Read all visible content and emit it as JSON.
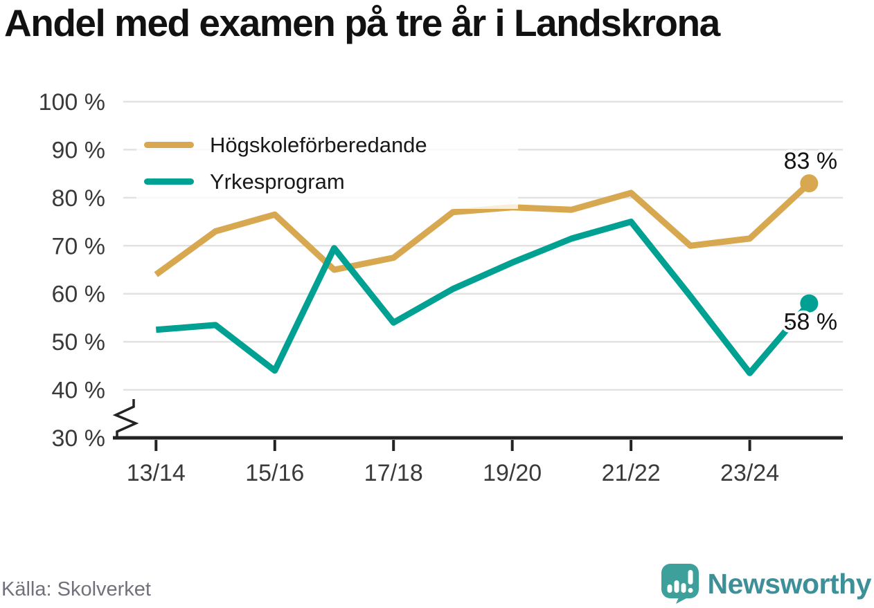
{
  "title": "Andel med examen på tre år i Landskrona",
  "source": "Källa: Skolverket",
  "branding": {
    "name": "Newsworthy",
    "logo_icon": "bar-chart-speech-bubble",
    "logo_color": "#3ea09b",
    "wordmark_color": "#3d9097"
  },
  "colors": {
    "axis": "#232323",
    "gridline": "#e2e2e2",
    "axis_label": "#3a3a3a",
    "annotation": "#141414",
    "hogskoleforberedande": "#d7a84f",
    "yrkesprogram": "#00a092"
  },
  "legend": {
    "items": [
      {
        "label": "Högskoleförberedande",
        "color": "#d7a84f"
      },
      {
        "label": "Yrkesprogram",
        "color": "#00a092"
      }
    ]
  },
  "chart_data": {
    "type": "line",
    "title": "Andel med examen på tre år i Landskrona",
    "x": [
      "13/14",
      "14/15",
      "15/16",
      "16/17",
      "17/18",
      "18/19",
      "19/20",
      "20/21",
      "21/22",
      "22/23",
      "23/24",
      "24/25"
    ],
    "x_tick_labels": [
      "13/14",
      "15/16",
      "17/18",
      "19/20",
      "21/22",
      "23/24"
    ],
    "series": [
      {
        "name": "Högskoleförberedande",
        "color": "#d7a84f",
        "end_label": "83 %",
        "values": [
          64,
          73,
          76.5,
          65,
          67.5,
          77,
          78,
          77.5,
          81,
          70,
          71.5,
          83
        ]
      },
      {
        "name": "Yrkesprogram",
        "color": "#00a092",
        "end_label": "58 %",
        "values": [
          52.5,
          53.5,
          44,
          69.5,
          54,
          61,
          66.5,
          71.5,
          75,
          59.5,
          43.5,
          58
        ]
      }
    ],
    "y_ticks": [
      30,
      40,
      50,
      60,
      70,
      80,
      90,
      100
    ],
    "y_tick_labels": [
      "30 %",
      "40 %",
      "50 %",
      "60 %",
      "70 %",
      "80 %",
      "90 %",
      "100 %"
    ],
    "ylim": [
      30,
      100
    ],
    "axis_break": true,
    "grid": "horizontal",
    "legend_position": "top-left-inside"
  }
}
